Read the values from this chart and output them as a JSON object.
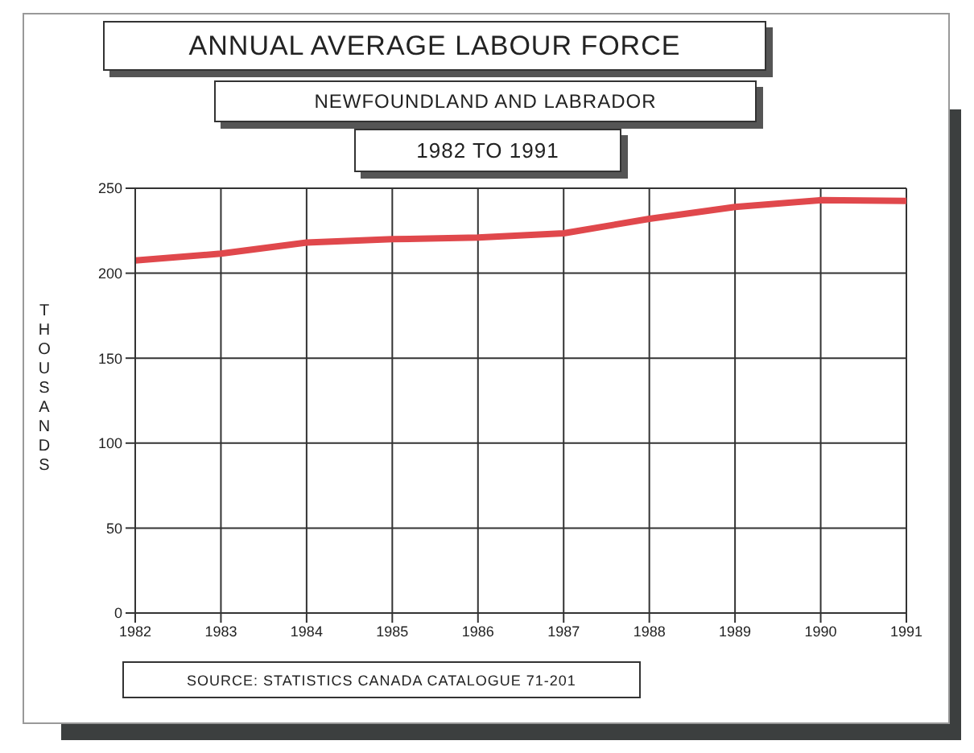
{
  "chart_data": {
    "type": "line",
    "title": "ANNUAL AVERAGE LABOUR FORCE",
    "subtitle": "NEWFOUNDLAND AND LABRADOR",
    "annotations": [
      "1982 TO 1991",
      "SOURCE: STATISTICS CANADA CATALOGUE 71-201"
    ],
    "ylabel": "THOUSANDS",
    "x": [
      1982,
      1983,
      1984,
      1985,
      1986,
      1987,
      1988,
      1989,
      1990,
      1991
    ],
    "series": [
      {
        "color": "#e0484c",
        "values": [
          207.5,
          211.5,
          218,
          220,
          221,
          223.5,
          232,
          239,
          243,
          242.5
        ]
      }
    ],
    "xlim": [
      1982,
      1991
    ],
    "xticks": [
      1982,
      1983,
      1984,
      1985,
      1986,
      1987,
      1988,
      1989,
      1990,
      1991
    ],
    "ylim": [
      0,
      250
    ],
    "yticks": [
      0,
      50,
      100,
      150,
      200,
      250
    ],
    "grid": true,
    "marker": "none",
    "line_style": "solid",
    "legend": false
  }
}
